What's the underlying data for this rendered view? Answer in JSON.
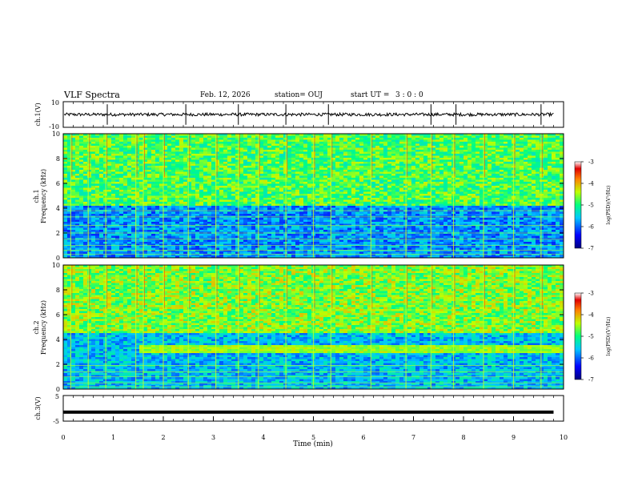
{
  "header": {
    "title": "VLF Spectra",
    "date": "Feb. 12, 2026",
    "station": "station= OUJ",
    "start_label": "start  UT  =",
    "start_time": "3  : 0  : 0"
  },
  "chart_data": [
    {
      "id": "ch1-waveform",
      "type": "line",
      "ylabel": "ch.1(V)",
      "ylim": [
        -10,
        10
      ],
      "ytick_labels": [
        "10",
        "-10"
      ],
      "baseline": 0,
      "noise_amplitude": 1.2,
      "spike_times_min": [
        0.88,
        2.45,
        3.5,
        4.45,
        5.3,
        7.35,
        7.85,
        9.55
      ]
    },
    {
      "id": "ch1-spectrogram",
      "type": "heatmap",
      "xlabel": "",
      "ylabel_channel": "ch.1",
      "ylabel": "Frequency (kHz)",
      "xlim": [
        0,
        10
      ],
      "ylim": [
        0,
        10
      ],
      "ytick_labels": [
        "0",
        "2",
        "4",
        "6",
        "8",
        "10"
      ],
      "background_log_psd": -5.8,
      "upper_band_log_psd": -4.8,
      "upper_band_from_khz": 4.2,
      "hum_lines_khz": [
        0.3,
        0.6,
        1.0,
        1.5,
        2.0,
        2.6,
        3.3,
        3.8
      ],
      "sferic_times_min": [
        0.15,
        0.5,
        0.85,
        1.45,
        1.6,
        2.0,
        2.5,
        3.05,
        3.5,
        3.9,
        4.45,
        5.0,
        5.35,
        6.15,
        6.85,
        7.35,
        7.8,
        8.4,
        9.0,
        9.55
      ]
    },
    {
      "id": "ch2-spectrogram",
      "type": "heatmap",
      "xlabel": "",
      "ylabel_channel": "ch.2",
      "ylabel": "Frequency (kHz)",
      "xlim": [
        0,
        10
      ],
      "ylim": [
        0,
        10
      ],
      "ytick_labels": [
        "0",
        "2",
        "4",
        "6",
        "8",
        "10"
      ],
      "background_log_psd": -5.6,
      "upper_band_log_psd": -4.6,
      "upper_band_from_khz": 4.5,
      "emission_band_khz": [
        2.9,
        3.6
      ],
      "emission_band_start_min": 1.5,
      "emission_band_log_psd": -4.5,
      "hum_lines_khz": [
        0.2,
        0.5,
        1.0,
        1.4,
        1.9
      ],
      "sferic_times_min": [
        0.15,
        0.5,
        0.85,
        1.45,
        1.6,
        2.0,
        2.5,
        3.05,
        3.5,
        3.9,
        4.45,
        5.0,
        5.35,
        6.15,
        6.85,
        7.35,
        7.8,
        8.4,
        9.0,
        9.55
      ]
    },
    {
      "id": "ch3-waveform",
      "type": "line",
      "ylabel": "ch.3(V)",
      "xlabel": "Time (min)",
      "xlim": [
        0,
        10
      ],
      "ylim": [
        -5,
        5
      ],
      "ytick_labels": [
        "5",
        "-5"
      ],
      "xtick_labels": [
        "0",
        "1",
        "2",
        "3",
        "4",
        "5",
        "6",
        "7",
        "8",
        "9",
        "10"
      ],
      "constant_value": -1.5,
      "data_end_min": 9.8
    }
  ],
  "colorbar": {
    "label": "log(PSD)(V²/Hz)",
    "range": [
      -7,
      -3
    ],
    "tick_labels": [
      "-3",
      "-4",
      "-5",
      "-6",
      "-7"
    ]
  }
}
